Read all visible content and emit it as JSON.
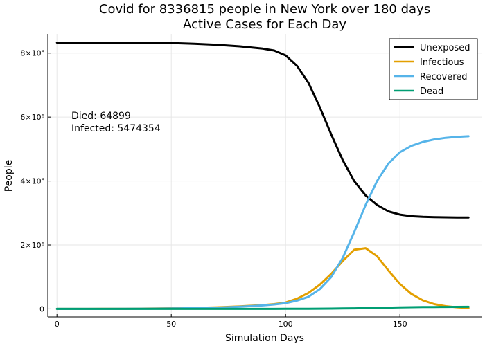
{
  "chart_data": {
    "type": "line",
    "title_line1": "Covid for 8336815 people in New York over 180 days",
    "title_line2": "Active Cases for Each Day",
    "xlabel": "Simulation Days",
    "ylabel": "People",
    "xlim": [
      -4,
      186
    ],
    "ylim": [
      -250000,
      8600000
    ],
    "xticks": [
      0,
      50,
      100,
      150
    ],
    "xtick_labels": [
      "0",
      "50",
      "100",
      "150"
    ],
    "yticks": [
      0,
      2000000,
      4000000,
      6000000,
      8000000
    ],
    "ytick_labels": [
      "0",
      "2×10⁶",
      "4×10⁶",
      "6×10⁶",
      "8×10⁶"
    ],
    "grid": true,
    "legend_position": "top-right",
    "annotations": [
      "Died: 64899",
      "Infected: 5474354"
    ],
    "x": [
      0,
      10,
      20,
      30,
      40,
      50,
      60,
      70,
      80,
      90,
      95,
      100,
      105,
      110,
      115,
      120,
      125,
      130,
      135,
      140,
      145,
      150,
      155,
      160,
      165,
      170,
      175,
      180
    ],
    "series": [
      {
        "name": "Unexposed",
        "color": "#000000",
        "values": [
          8330000,
          8330000,
          8330000,
          8330000,
          8325000,
          8315000,
          8290000,
          8260000,
          8210000,
          8140000,
          8080000,
          7930000,
          7600000,
          7070000,
          6300000,
          5450000,
          4650000,
          4000000,
          3550000,
          3250000,
          3050000,
          2950000,
          2900000,
          2880000,
          2870000,
          2865000,
          2862000,
          2860000
        ]
      },
      {
        "name": "Infectious",
        "color": "#e39f00",
        "values": [
          0,
          1000,
          3000,
          6000,
          12000,
          20000,
          32000,
          50000,
          80000,
          120000,
          150000,
          200000,
          320000,
          500000,
          760000,
          1100000,
          1500000,
          1850000,
          1900000,
          1650000,
          1200000,
          780000,
          470000,
          270000,
          150000,
          85000,
          50000,
          30000
        ]
      },
      {
        "name": "Recovered",
        "color": "#56b4e9",
        "values": [
          0,
          500,
          1500,
          4000,
          8000,
          15000,
          25000,
          40000,
          70000,
          110000,
          140000,
          180000,
          260000,
          380000,
          620000,
          1000000,
          1600000,
          2400000,
          3250000,
          4000000,
          4550000,
          4900000,
          5100000,
          5220000,
          5300000,
          5350000,
          5380000,
          5400000
        ]
      },
      {
        "name": "Dead",
        "color": "#009e73",
        "values": [
          0,
          0,
          0,
          0,
          0,
          0,
          0,
          500,
          1000,
          1500,
          2000,
          2500,
          3500,
          5000,
          7000,
          10000,
          14000,
          19000,
          25000,
          32000,
          39000,
          46000,
          52000,
          57000,
          60000,
          62500,
          64000,
          64899
        ]
      }
    ]
  }
}
